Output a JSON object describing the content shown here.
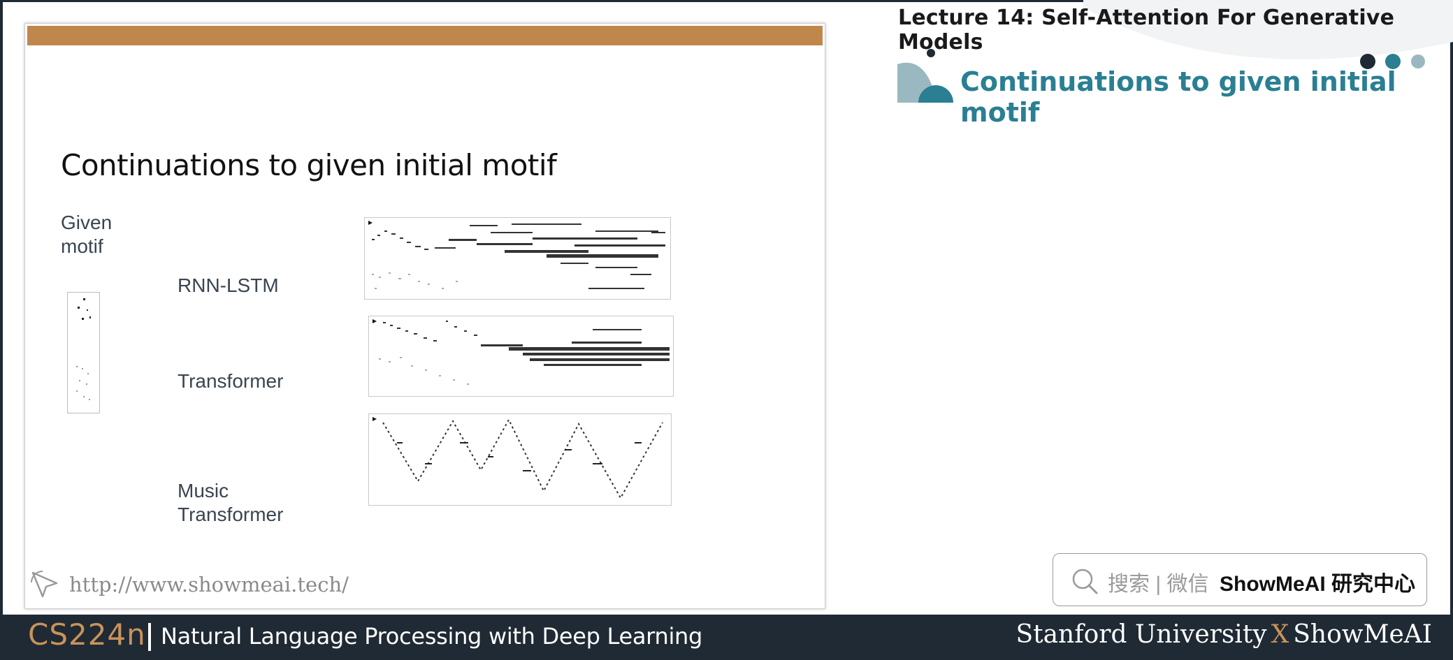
{
  "header": {
    "lecture_title": "Lecture 14:  Self-Attention For Generative Models",
    "section_title": "Continuations to given initial motif"
  },
  "slide": {
    "title": "Continuations to given initial motif",
    "given_label": "Given motif",
    "rows": [
      {
        "label": "RNN-LSTM"
      },
      {
        "label": "Transformer"
      },
      {
        "label": "Music Transformer"
      }
    ],
    "url": "http://www.showmeai.tech/"
  },
  "search_badge": {
    "prefix": "搜索 | 微信",
    "brand": "ShowMeAI 研究中心"
  },
  "footer": {
    "course_code": "CS224n",
    "course_name": "Natural Language Processing with Deep Learning",
    "left_org": "Stanford University",
    "x_mark": "X",
    "right_org": "ShowMeAI"
  },
  "colors": {
    "accent_bar": "#c0874d",
    "section_teal": "#2a7f93",
    "footer_bg": "#1f2a34",
    "course_code": "#c9935a"
  }
}
